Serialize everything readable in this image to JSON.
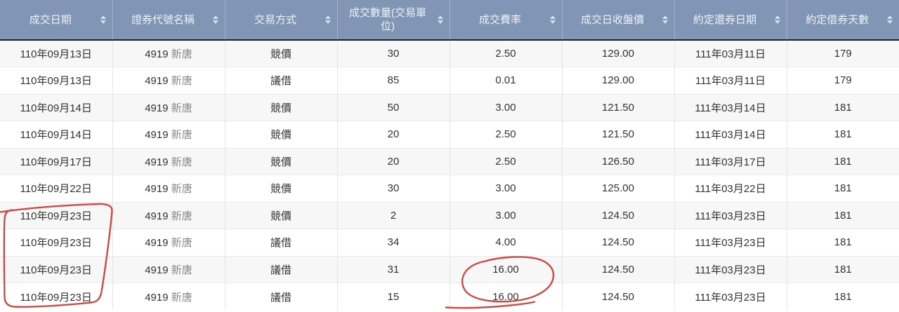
{
  "table": {
    "columns": [
      {
        "id": "trade-date",
        "label": "成交日期",
        "sortable": true
      },
      {
        "id": "security",
        "label": "證券代號名稱",
        "sortable": true
      },
      {
        "id": "method",
        "label": "交易方式",
        "sortable": true
      },
      {
        "id": "volume",
        "label": "成交數量(交易單位)",
        "sortable": true
      },
      {
        "id": "fee-rate",
        "label": "成交費率",
        "sortable": true
      },
      {
        "id": "close-price",
        "label": "成交日收盤價",
        "sortable": true
      },
      {
        "id": "return-date",
        "label": "約定還券日期",
        "sortable": true
      },
      {
        "id": "borrow-days",
        "label": "約定借券天數",
        "sortable": true
      }
    ],
    "rows": [
      [
        "110年09月13日",
        "4919 新唐",
        "競價",
        "30",
        "2.50",
        "129.00",
        "111年03月11日",
        "179"
      ],
      [
        "110年09月13日",
        "4919 新唐",
        "議借",
        "85",
        "0.01",
        "129.00",
        "111年03月11日",
        "179"
      ],
      [
        "110年09月14日",
        "4919 新唐",
        "競價",
        "50",
        "3.00",
        "121.50",
        "111年03月14日",
        "181"
      ],
      [
        "110年09月14日",
        "4919 新唐",
        "競價",
        "20",
        "2.50",
        "121.50",
        "111年03月14日",
        "181"
      ],
      [
        "110年09月17日",
        "4919 新唐",
        "競價",
        "20",
        "2.50",
        "126.50",
        "111年03月17日",
        "181"
      ],
      [
        "110年09月22日",
        "4919 新唐",
        "競價",
        "30",
        "3.00",
        "125.00",
        "111年03月22日",
        "181"
      ],
      [
        "110年09月23日",
        "4919 新唐",
        "競價",
        "2",
        "3.00",
        "124.50",
        "111年03月23日",
        "181"
      ],
      [
        "110年09月23日",
        "4919 新唐",
        "議借",
        "34",
        "4.00",
        "124.50",
        "111年03月23日",
        "181"
      ],
      [
        "110年09月23日",
        "4919 新唐",
        "議借",
        "31",
        "16.00",
        "124.50",
        "111年03月23日",
        "181"
      ],
      [
        "110年09月23日",
        "4919 新唐",
        "議借",
        "15",
        "16.00",
        "124.50",
        "111年03月23日",
        "181"
      ]
    ]
  },
  "annotations": {
    "color": "#c8423c",
    "items": [
      {
        "shape": "hand-drawn-box",
        "around": "110年09月23日 dates, rows 7-10"
      },
      {
        "shape": "hand-drawn-oval",
        "around": "16.00 fee rates, rows 9-10"
      },
      {
        "shape": "hand-drawn-underline",
        "under": "16.00 fee rate, row 10"
      }
    ]
  },
  "colors": {
    "header_bg": "#8096b4",
    "header_text": "#eef2f7",
    "header_bottom_border": "#1b2330",
    "row_alt": "#f7f7f7",
    "annotation_red": "#c8423c"
  }
}
